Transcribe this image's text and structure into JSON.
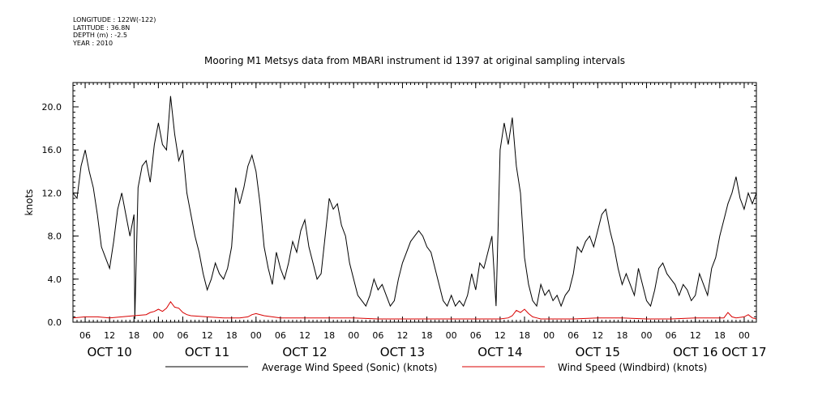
{
  "meta": {
    "longitude": "LONGITUDE : 122W(-122)",
    "latitude": "LATITUDE : 36.8N",
    "depth": "DEPTH (m) : -2.5",
    "year": "YEAR : 2010"
  },
  "chart_data": {
    "type": "line",
    "title": "Mooring M1 Metsys data from MBARI instrument id 1397 at original sampling intervals",
    "xlabel": "",
    "ylabel": "knots",
    "ylim": [
      0,
      22
    ],
    "yticks": [
      0.0,
      4.0,
      8.0,
      12.0,
      16.0,
      20.0
    ],
    "ytick_labels": [
      "0.0",
      "4.0",
      "8.0",
      "12.0",
      "16.0",
      "20.0"
    ],
    "x_unit": "hours since OCT 10 00:00",
    "xlim": [
      3,
      171
    ],
    "hour_ticks": [
      6,
      12,
      18,
      24,
      30,
      36,
      42,
      48,
      54,
      60,
      66,
      72,
      78,
      84,
      90,
      96,
      102,
      108,
      114,
      120,
      126,
      132,
      138,
      144,
      150,
      156,
      162,
      168
    ],
    "hour_tick_labels": [
      "06",
      "12",
      "18",
      "00",
      "06",
      "12",
      "18",
      "00",
      "06",
      "12",
      "18",
      "00",
      "06",
      "12",
      "18",
      "00",
      "06",
      "12",
      "18",
      "00",
      "06",
      "12",
      "18",
      "00",
      "06",
      "12",
      "18",
      "00"
    ],
    "day_labels": [
      {
        "label": "OCT 10",
        "hour": 12
      },
      {
        "label": "OCT 11",
        "hour": 36
      },
      {
        "label": "OCT 12",
        "hour": 60
      },
      {
        "label": "OCT 13",
        "hour": 84
      },
      {
        "label": "OCT 14",
        "hour": 108
      },
      {
        "label": "OCT 15",
        "hour": 132
      },
      {
        "label": "OCT 16",
        "hour": 156
      },
      {
        "label": "OCT 17",
        "hour": 168
      }
    ],
    "series": [
      {
        "name": "Average Wind Speed (Sonic) (knots)",
        "color": "#000000",
        "x": [
          3,
          4,
          5,
          6,
          7,
          8,
          9,
          10,
          11,
          12,
          13,
          14,
          15,
          16,
          17,
          18,
          18.2,
          19,
          20,
          21,
          22,
          23,
          24,
          25,
          26,
          27,
          28,
          29,
          30,
          31,
          32,
          33,
          34,
          35,
          36,
          37,
          38,
          39,
          40,
          41,
          42,
          43,
          44,
          45,
          46,
          47,
          48,
          49,
          50,
          51,
          52,
          53,
          54,
          55,
          56,
          57,
          58,
          59,
          60,
          61,
          62,
          63,
          64,
          65,
          66,
          67,
          68,
          69,
          70,
          71,
          72,
          73,
          74,
          75,
          76,
          77,
          78,
          79,
          80,
          81,
          82,
          83,
          84,
          85,
          86,
          87,
          88,
          89,
          90,
          91,
          92,
          93,
          94,
          95,
          96,
          97,
          98,
          99,
          100,
          101,
          102,
          103,
          104,
          105,
          106,
          107,
          108,
          109,
          110,
          111,
          112,
          113,
          114,
          115,
          116,
          117,
          118,
          119,
          120,
          121,
          122,
          123,
          124,
          125,
          126,
          127,
          128,
          129,
          130,
          131,
          132,
          133,
          134,
          135,
          136,
          137,
          138,
          139,
          140,
          141,
          142,
          143,
          144,
          145,
          146,
          147,
          148,
          149,
          150,
          151,
          152,
          153,
          154,
          155,
          156,
          157,
          158,
          159,
          160,
          161,
          162,
          163,
          164,
          165,
          166,
          167,
          168,
          169,
          170,
          171
        ],
        "values": [
          12.0,
          11.5,
          14.5,
          16.0,
          14.0,
          12.5,
          10.0,
          7.0,
          6.0,
          5.0,
          7.5,
          10.5,
          12.0,
          10.0,
          8.0,
          10.0,
          0.3,
          12.5,
          14.5,
          15.0,
          13.0,
          16.5,
          18.5,
          16.5,
          16.0,
          21.0,
          17.5,
          15.0,
          16.0,
          12.0,
          10.0,
          8.0,
          6.5,
          4.5,
          3.0,
          4.0,
          5.5,
          4.5,
          4.0,
          5.0,
          7.0,
          12.5,
          11.0,
          12.5,
          14.5,
          15.5,
          14.0,
          11.0,
          7.0,
          5.0,
          3.5,
          6.5,
          5.0,
          4.0,
          5.5,
          7.5,
          6.5,
          8.5,
          9.5,
          7.0,
          5.5,
          4.0,
          4.5,
          8.0,
          11.5,
          10.5,
          11.0,
          9.0,
          8.0,
          5.5,
          4.0,
          2.5,
          2.0,
          1.5,
          2.5,
          4.0,
          3.0,
          3.5,
          2.5,
          1.5,
          2.0,
          4.0,
          5.5,
          6.5,
          7.5,
          8.0,
          8.5,
          8.0,
          7.0,
          6.5,
          5.0,
          3.5,
          2.0,
          1.5,
          2.5,
          1.5,
          2.0,
          1.5,
          2.5,
          4.5,
          3.0,
          5.5,
          5.0,
          6.5,
          8.0,
          1.5,
          16.0,
          18.5,
          16.5,
          19.0,
          14.5,
          12.0,
          6.0,
          3.5,
          2.0,
          1.5,
          3.5,
          2.5,
          3.0,
          2.0,
          2.5,
          1.5,
          2.5,
          3.0,
          4.5,
          7.0,
          6.5,
          7.5,
          8.0,
          7.0,
          8.5,
          10.0,
          10.5,
          8.5,
          7.0,
          5.0,
          3.5,
          4.5,
          3.5,
          2.5,
          5.0,
          3.5,
          2.0,
          1.5,
          3.0,
          5.0,
          5.5,
          4.5,
          4.0,
          3.5,
          2.5,
          3.5,
          3.0,
          2.0,
          2.5,
          4.5,
          3.5,
          2.5,
          5.0,
          6.0,
          8.0,
          9.5,
          11.0,
          12.0,
          13.5,
          11.5,
          10.5,
          12.0,
          11.0,
          12.0
        ]
      },
      {
        "name": "Wind Speed (Windbird) (knots)",
        "color": "#d80000",
        "x": [
          3,
          6,
          9,
          12,
          15,
          18,
          21,
          22,
          23,
          24,
          25,
          26,
          27,
          28,
          29,
          30,
          31,
          32,
          36,
          40,
          44,
          46,
          47,
          48,
          50,
          54,
          60,
          66,
          72,
          78,
          84,
          90,
          96,
          102,
          108,
          110,
          111,
          112,
          113,
          114,
          115,
          116,
          117,
          118,
          120,
          126,
          132,
          138,
          144,
          150,
          156,
          162,
          163,
          164,
          165,
          166,
          168,
          169,
          170,
          171
        ],
        "values": [
          0.4,
          0.5,
          0.5,
          0.4,
          0.5,
          0.6,
          0.7,
          0.9,
          1.0,
          1.2,
          1.0,
          1.3,
          1.9,
          1.4,
          1.3,
          0.9,
          0.7,
          0.6,
          0.5,
          0.4,
          0.4,
          0.5,
          0.7,
          0.8,
          0.6,
          0.4,
          0.4,
          0.4,
          0.4,
          0.3,
          0.3,
          0.3,
          0.3,
          0.3,
          0.3,
          0.4,
          0.6,
          1.1,
          0.9,
          1.2,
          0.8,
          0.5,
          0.4,
          0.3,
          0.3,
          0.3,
          0.4,
          0.4,
          0.3,
          0.3,
          0.4,
          0.4,
          0.4,
          0.9,
          0.5,
          0.4,
          0.5,
          0.7,
          0.4,
          0.3
        ]
      }
    ],
    "legend": "bottom"
  }
}
